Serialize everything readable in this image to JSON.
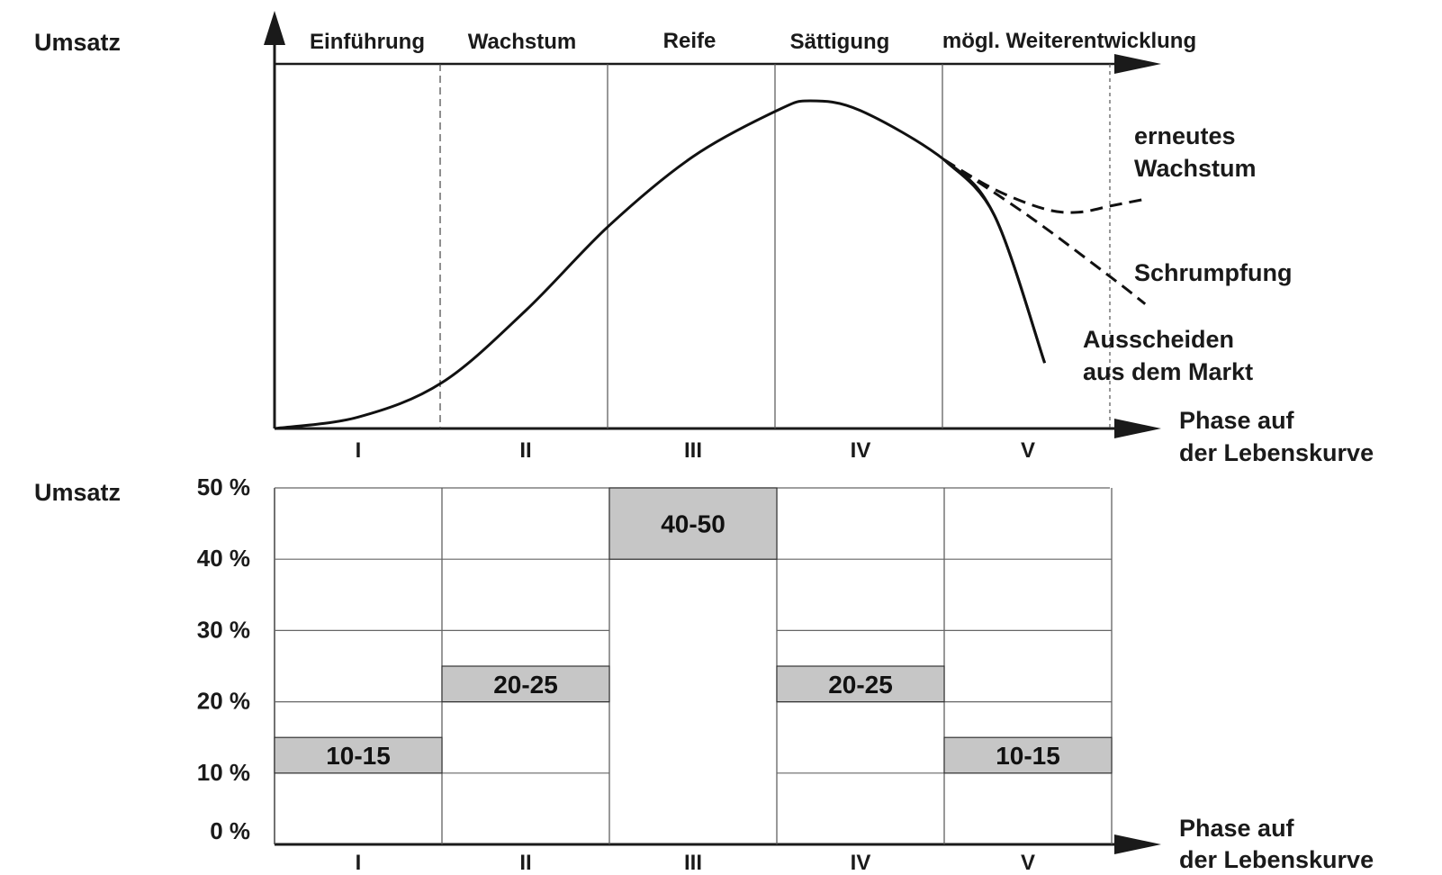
{
  "chart_data": [
    {
      "type": "line",
      "ylabel": "Umsatz",
      "xlabel_line1": "Phase auf",
      "xlabel_line2": "der Lebenskurve",
      "phase_names": [
        "Einführung",
        "Wachstum",
        "Reife",
        "Sättigung",
        "mögl. Weiterentwicklung"
      ],
      "phases": [
        "I",
        "II",
        "III",
        "IV",
        "V"
      ],
      "series": [
        {
          "name": "",
          "x": [
            0,
            0.5,
            1,
            1.5,
            2,
            2.5,
            3,
            3.2,
            3.5,
            4,
            4.3,
            4.6
          ],
          "y": [
            0,
            3.5,
            14,
            36,
            62,
            83,
            97,
            100,
            97,
            82,
            65,
            20
          ]
        }
      ],
      "branches": [
        {
          "name": "erneutes Wachstum",
          "x": [
            4,
            4.3,
            4.6,
            4.8,
            5.0,
            5.2
          ],
          "y": [
            82,
            73,
            67,
            66,
            68,
            70
          ]
        },
        {
          "name": "Schrumpfung",
          "x": [
            4,
            4.5,
            5.0,
            5.2
          ],
          "y": [
            82,
            65,
            46,
            38
          ]
        },
        {
          "name": "Ausscheiden aus dem Markt",
          "x": [
            4,
            4.3,
            4.6
          ],
          "y": [
            82,
            65,
            20
          ]
        }
      ],
      "grid": false
    },
    {
      "type": "bar",
      "ylabel": "Umsatz",
      "xlabel_line1": "Phase auf",
      "xlabel_line2": "der Lebenskurve",
      "categories": [
        "I",
        "II",
        "III",
        "IV",
        "V"
      ],
      "ranges": [
        [
          10,
          15
        ],
        [
          20,
          25
        ],
        [
          40,
          50
        ],
        [
          20,
          25
        ],
        [
          10,
          15
        ]
      ],
      "range_labels": [
        "10-15",
        "20-25",
        "40-50",
        "20-25",
        "10-15"
      ],
      "yticks": [
        "0 %",
        "10 %",
        "20 %",
        "30 %",
        "40 %",
        "50 %"
      ],
      "ylim": [
        0,
        50
      ],
      "bar_color": "#c6c6c6",
      "grid": true
    }
  ]
}
